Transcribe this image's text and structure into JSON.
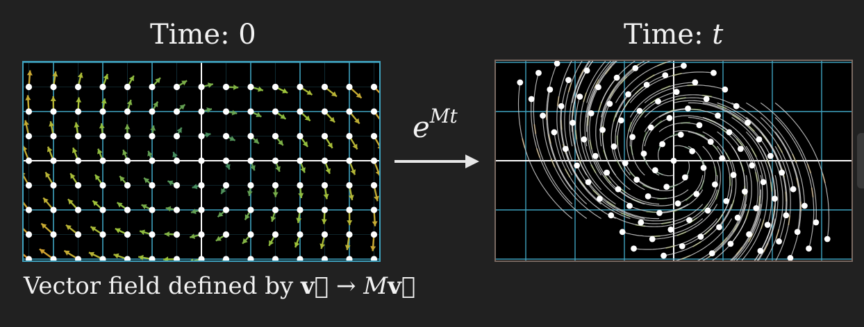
{
  "left_panel": {
    "title_prefix": "Time:",
    "title_value": "0",
    "caption": {
      "text_before": "Vector field defined by ",
      "vec": "v⃗",
      "arrow": "→",
      "matrix": "M",
      "vec2": "v⃗"
    }
  },
  "right_panel": {
    "title_prefix": "Time:",
    "title_value": "t"
  },
  "transform": {
    "base": "e",
    "exponent": "Mt"
  },
  "colors": {
    "background": "#212121",
    "panel_bg": "#000000",
    "grid": "#3fa3c0",
    "axis": "#ffffff",
    "left_frame": "#3fa3c0",
    "right_frame": "#7a6a62",
    "dot": "#ffffff",
    "flow_lines": "#dcdcdc",
    "arrow_low": "#2e7d6a",
    "arrow_mid": "#9bc43a",
    "arrow_high": "#e8962c"
  }
}
